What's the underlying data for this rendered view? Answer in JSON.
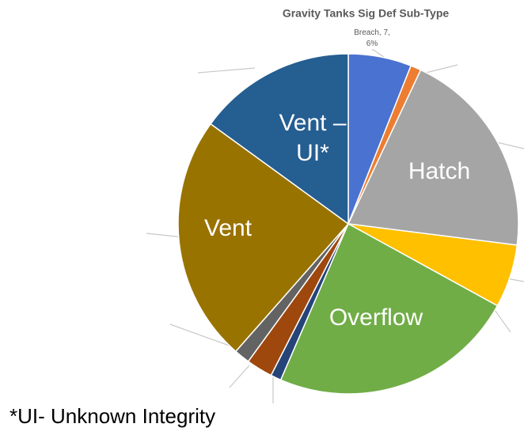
{
  "chart_data": {
    "type": "pie",
    "title": "Gravity Tanks Sig Def Sub-Type",
    "categories": [
      null,
      null,
      "Hatch",
      null,
      "Overflow",
      null,
      null,
      null,
      "Vent",
      "Vent – UI*"
    ],
    "values": [
      6,
      1,
      20,
      6,
      23.5,
      1,
      2.5,
      1.5,
      23.5,
      15
    ],
    "value_labels": [
      "Breach, 7, 6%",
      null,
      null,
      null,
      null,
      null,
      null,
      null,
      null,
      null
    ],
    "colors": [
      "#4a72d0",
      "#ed7d31",
      "#a5a5a5",
      "#ffc000",
      "#70ad47",
      "#264478",
      "#9e480e",
      "#636363",
      "#997300",
      "#255e91"
    ],
    "footnote": "*UI- Unknown Integrity"
  }
}
